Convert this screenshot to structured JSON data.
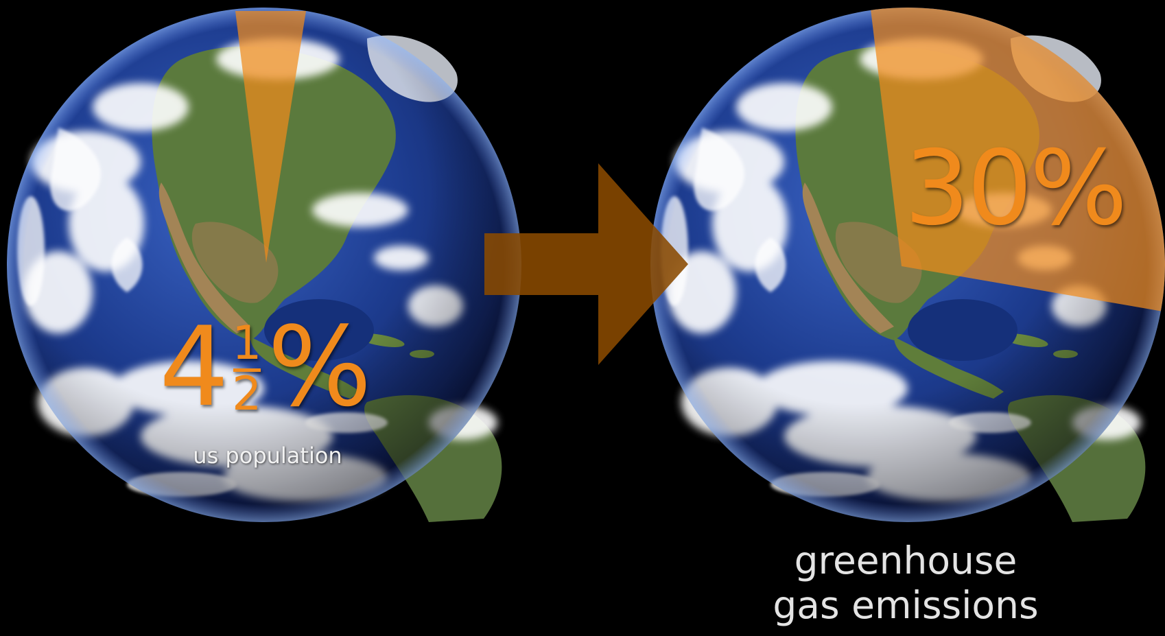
{
  "left_globe": {
    "percentage_whole": "4",
    "percentage_fraction_numerator": "1",
    "percentage_fraction_denominator": "2",
    "percentage_sign": "%",
    "caption": "us population",
    "wedge_share": 0.045
  },
  "right_globe": {
    "percentage": "30%",
    "caption_lines": [
      "greenhouse",
      "gas emissions"
    ],
    "wedge_share": 0.3
  },
  "colors": {
    "background": "#000000",
    "highlight_orange": "#f08a1c",
    "arrow_brown": "#8a4a00",
    "ocean_blue": "#1d3c8f",
    "land_green": "#4f6b35",
    "caption_text": "#e4e4e4"
  },
  "icons": [
    "earth-globe-icon",
    "right-arrow-icon"
  ]
}
